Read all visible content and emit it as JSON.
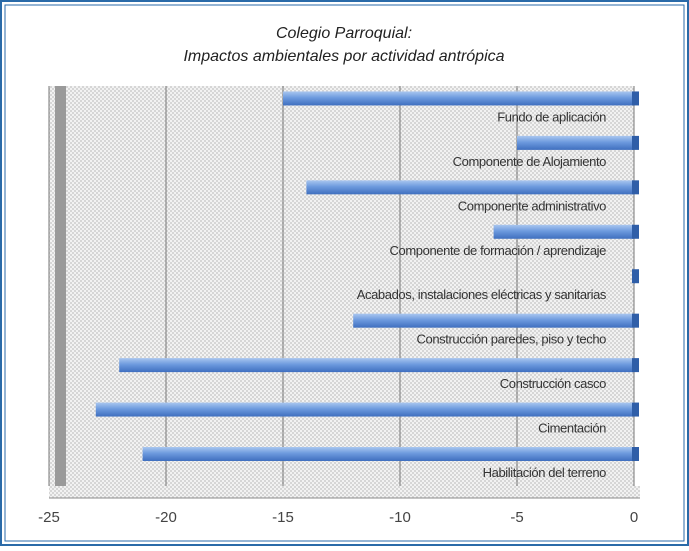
{
  "chart_data": {
    "type": "bar",
    "orientation": "horizontal",
    "title": "Colegio Parroquial:",
    "subtitle": "Impactos ambientales por actividad antrópica",
    "categories": [
      "Fundo de aplicación",
      "Componente de Alojamiento",
      "Componente administrativo",
      "Componente de formación / aprendizaje",
      "Acabados, instalaciones eléctricas y sanitarias",
      "Construcción paredes, piso y techo",
      "Construcción casco",
      "Cimentación",
      "Habilitación del terreno"
    ],
    "values": [
      -15,
      -5,
      -14,
      -6,
      0,
      -12,
      -22,
      -23,
      -21
    ],
    "color": "#5b8fd6",
    "xlim": [
      -25,
      0
    ],
    "xticks": [
      -25,
      -20,
      -15,
      -10,
      -5,
      0
    ],
    "grid": true
  }
}
